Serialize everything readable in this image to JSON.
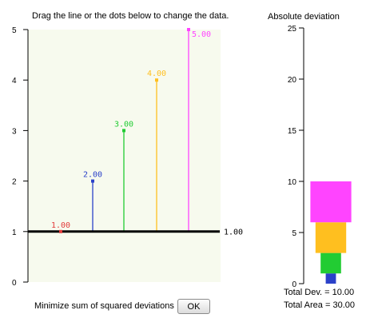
{
  "instruction": "Drag the line or the dots below to change the data.",
  "main_plot": {
    "y_ticks": [
      "0",
      "1",
      "2",
      "3",
      "4",
      "5"
    ],
    "line_value_label": "1.00",
    "line_value": 1.0
  },
  "deviation_plot": {
    "title": "Absolute deviation",
    "y_ticks": [
      "0",
      "5",
      "10",
      "15",
      "20",
      "25"
    ]
  },
  "colors": {
    "background": "#f7faee",
    "line": "#000000",
    "points": [
      "#e23a3a",
      "#2b41c9",
      "#22cc33",
      "#ffbf1f",
      "#ff44ff"
    ]
  },
  "chart_data": [
    {
      "type": "scatter",
      "ylim": [
        0,
        5
      ],
      "points": [
        {
          "value": 1.0,
          "label": "1.00"
        },
        {
          "value": 2.0,
          "label": "2.00"
        },
        {
          "value": 3.0,
          "label": "3.00"
        },
        {
          "value": 4.0,
          "label": "4.00"
        },
        {
          "value": 5.0,
          "label": "5.00"
        }
      ]
    },
    {
      "type": "bar",
      "title": "Absolute deviation",
      "ylim": [
        0,
        25
      ],
      "stacked_square_sides": [
        1,
        2,
        3,
        4
      ]
    }
  ],
  "controls": {
    "minimize_label": "Minimize sum of squared deviations",
    "ok_label": "OK"
  },
  "totals": {
    "total_dev": "Total Dev. = 10.00",
    "total_area": "Total Area = 30.00"
  }
}
